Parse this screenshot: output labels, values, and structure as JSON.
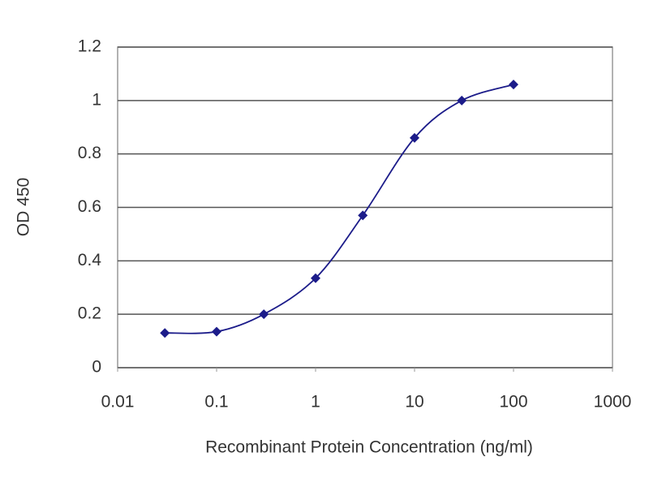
{
  "chart_data": {
    "type": "line",
    "x_label": "Recombinant Protein Concentration (ng/ml)",
    "y_label": "OD 450",
    "x": [
      0.03,
      0.1,
      0.3,
      1,
      3,
      10,
      30,
      100
    ],
    "series": [
      {
        "color": "#1c1c8a",
        "values": [
          0.13,
          0.135,
          0.2,
          0.335,
          0.57,
          0.86,
          1.0,
          1.06
        ]
      }
    ],
    "xscale": "log",
    "xlim": [
      0.01,
      1000
    ],
    "xticks": [
      0.01,
      0.1,
      1,
      10,
      100,
      1000
    ],
    "ylim": [
      0,
      1.2
    ],
    "yticks": [
      0,
      0.2,
      0.4,
      0.6,
      0.8,
      1,
      1.2
    ],
    "grid": true
  }
}
